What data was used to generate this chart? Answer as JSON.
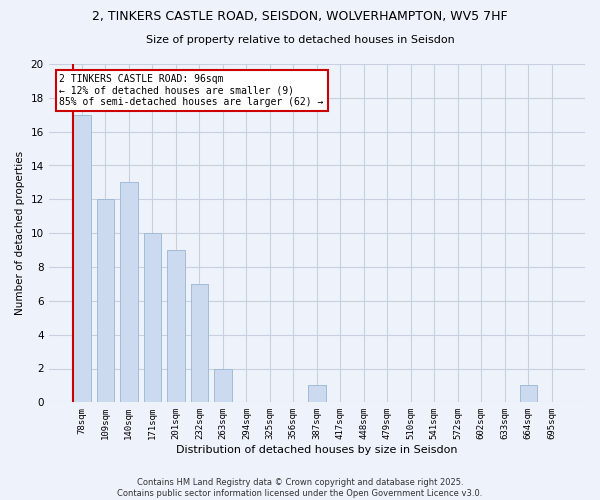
{
  "title": "2, TINKERS CASTLE ROAD, SEISDON, WOLVERHAMPTON, WV5 7HF",
  "subtitle": "Size of property relative to detached houses in Seisdon",
  "xlabel": "Distribution of detached houses by size in Seisdon",
  "ylabel": "Number of detached properties",
  "bar_color": "#ccdaf0",
  "bar_edge_color": "#a0bcd8",
  "categories": [
    "78sqm",
    "109sqm",
    "140sqm",
    "171sqm",
    "201sqm",
    "232sqm",
    "263sqm",
    "294sqm",
    "325sqm",
    "356sqm",
    "387sqm",
    "417sqm",
    "448sqm",
    "479sqm",
    "510sqm",
    "541sqm",
    "572sqm",
    "602sqm",
    "633sqm",
    "664sqm",
    "695sqm"
  ],
  "values": [
    17,
    12,
    13,
    10,
    9,
    7,
    2,
    0,
    0,
    0,
    1,
    0,
    0,
    0,
    0,
    0,
    0,
    0,
    0,
    1,
    0
  ],
  "ylim": [
    0,
    20
  ],
  "yticks": [
    0,
    2,
    4,
    6,
    8,
    10,
    12,
    14,
    16,
    18,
    20
  ],
  "vline_color": "#cc0000",
  "annotation_text": "2 TINKERS CASTLE ROAD: 96sqm\n← 12% of detached houses are smaller (9)\n85% of semi-detached houses are larger (62) →",
  "annotation_box_color": "#ffffff",
  "annotation_box_edge": "#cc0000",
  "footer_text": "Contains HM Land Registry data © Crown copyright and database right 2025.\nContains public sector information licensed under the Open Government Licence v3.0.",
  "background_color": "#eef2fb",
  "grid_color": "#c8d0e0"
}
